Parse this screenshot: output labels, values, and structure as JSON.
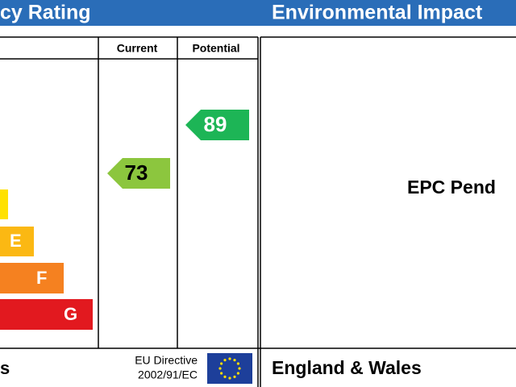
{
  "header": {
    "left_title": "cy Rating",
    "right_title": "Environmental Impact"
  },
  "columns": {
    "current": "Current",
    "potential": "Potential"
  },
  "bands": [
    {
      "letter": "E"
    },
    {
      "letter": "F"
    },
    {
      "letter": "G"
    }
  ],
  "ratings": {
    "current": "73",
    "potential": "89"
  },
  "footer": {
    "left": "s",
    "directive_line1": "EU Directive",
    "directive_line2": "2002/91/EC",
    "region": "England & Wales"
  },
  "right_panel": {
    "status": "EPC Pend"
  }
}
